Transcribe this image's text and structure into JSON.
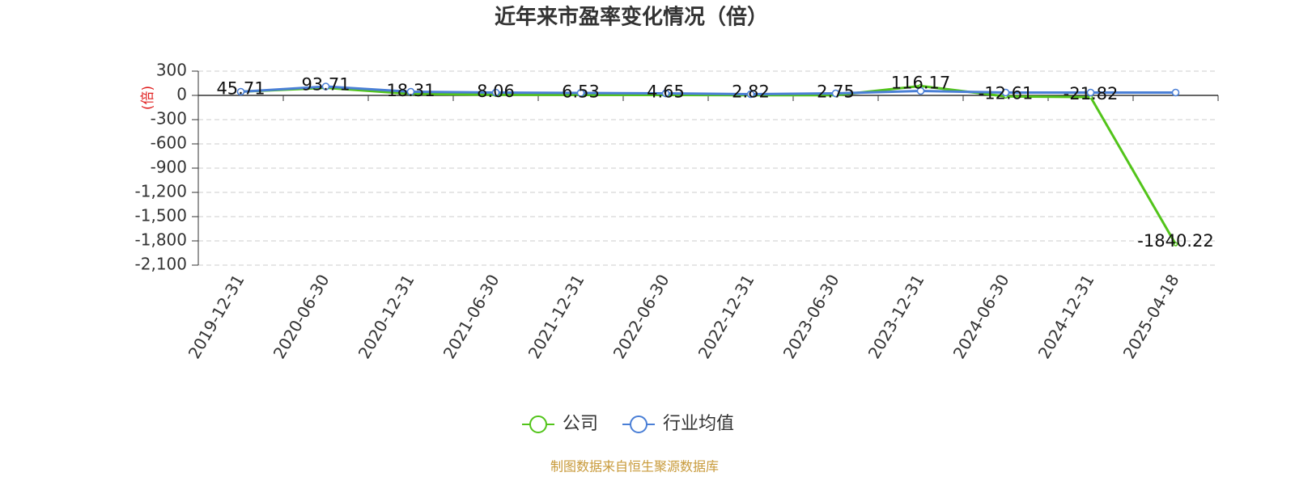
{
  "chart_data": {
    "type": "line",
    "title": "近年来市盈率变化情况（倍）",
    "y_label": "(倍)",
    "categories": [
      "2019-12-31",
      "2020-06-30",
      "2020-12-31",
      "2021-06-30",
      "2021-12-31",
      "2022-06-30",
      "2022-12-31",
      "2023-06-30",
      "2023-12-31",
      "2024-06-30",
      "2024-12-31",
      "2025-04-18"
    ],
    "series": [
      {
        "name": "公司",
        "color": "#52c41a",
        "values": [
          45.71,
          93.71,
          18.31,
          8.06,
          6.53,
          4.65,
          2.82,
          2.75,
          116.17,
          -12.61,
          -21.82,
          -1840.22
        ]
      },
      {
        "name": "行业均值",
        "color": "#4a7fd6",
        "values": [
          45,
          110,
          45,
          35,
          30,
          25,
          15,
          25,
          55,
          35,
          35,
          35
        ]
      }
    ],
    "ylim": [
      -2100,
      300
    ],
    "yticks": [
      300,
      0,
      -300,
      -600,
      -900,
      {
        "value": -1200,
        "label": "-1,200"
      },
      {
        "value": -1500,
        "label": "-1,500"
      },
      {
        "value": -1800,
        "label": "-1,800"
      },
      {
        "value": -2100,
        "label": "-2,100"
      }
    ],
    "grid": true,
    "footer": "制图数据来自恒生聚源数据库"
  }
}
